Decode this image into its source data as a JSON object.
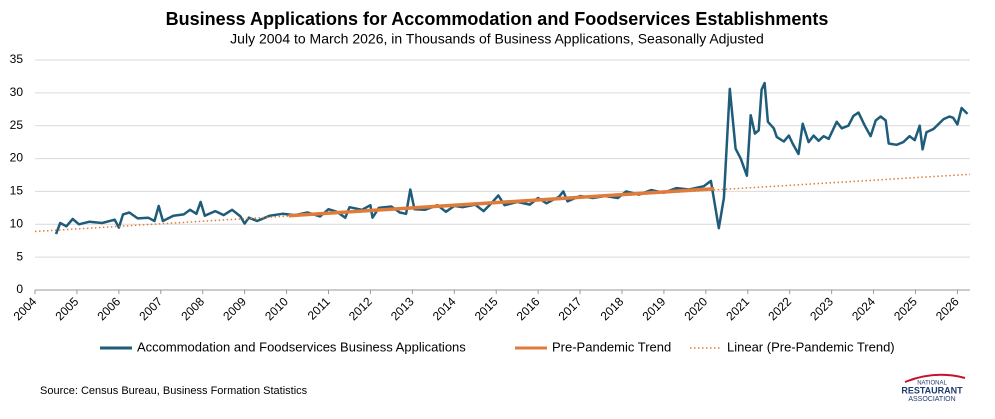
{
  "chart_data": {
    "type": "line",
    "title": "Business Applications for Accommodation and Foodservices Establishments",
    "subtitle": "July 2004 to March 2026, in Thousands of Business Applications, Seasonally Adjusted",
    "source": "Source: Census Bureau, Business Formation Statistics",
    "logo": [
      "NATIONAL",
      "RESTAURANT",
      "ASSOCIATION"
    ],
    "xlim": [
      2004,
      2026.3
    ],
    "xticks": [
      2004,
      2005,
      2006,
      2007,
      2008,
      2009,
      2010,
      2011,
      2012,
      2013,
      2014,
      2015,
      2016,
      2017,
      2018,
      2019,
      2020,
      2021,
      2022,
      2023,
      2024,
      2025,
      2026
    ],
    "ylim": [
      0,
      35
    ],
    "yticks": [
      0,
      5,
      10,
      15,
      20,
      25,
      30,
      35
    ],
    "grid": true,
    "legend": "bottom",
    "series": [
      {
        "name": "Accommodation and Foodservices Business Applications",
        "color": "#1f5c7a",
        "line_style": "solid",
        "x": [
          2004.5,
          2004.6,
          2004.75,
          2004.9,
          2005.05,
          2005.3,
          2005.6,
          2005.9,
          2006.0,
          2006.1,
          2006.25,
          2006.45,
          2006.7,
          2006.85,
          2006.95,
          2007.05,
          2007.3,
          2007.55,
          2007.7,
          2007.85,
          2007.95,
          2008.05,
          2008.3,
          2008.5,
          2008.7,
          2008.9,
          2009.0,
          2009.1,
          2009.3,
          2009.6,
          2009.9,
          2010.2,
          2010.5,
          2010.8,
          2011.0,
          2011.2,
          2011.4,
          2011.5,
          2011.8,
          2012.0,
          2012.05,
          2012.2,
          2012.5,
          2012.7,
          2012.85,
          2012.95,
          2013.05,
          2013.3,
          2013.6,
          2013.8,
          2014.0,
          2014.2,
          2014.5,
          2014.7,
          2014.9,
          2015.05,
          2015.2,
          2015.5,
          2015.8,
          2016.0,
          2016.2,
          2016.5,
          2016.6,
          2016.7,
          2017.0,
          2017.3,
          2017.6,
          2017.9,
          2018.1,
          2018.4,
          2018.7,
          2019.0,
          2019.3,
          2019.6,
          2019.95,
          2020.12,
          2020.31,
          2020.43,
          2020.57,
          2020.71,
          2020.83,
          2020.98,
          2021.07,
          2021.17,
          2021.26,
          2021.33,
          2021.4,
          2021.48,
          2021.62,
          2021.69,
          2021.86,
          2021.98,
          2022.07,
          2022.21,
          2022.31,
          2022.45,
          2022.57,
          2022.69,
          2022.81,
          2022.93,
          2023.12,
          2023.24,
          2023.4,
          2023.52,
          2023.64,
          2023.79,
          2023.93,
          2024.05,
          2024.17,
          2024.29,
          2024.36,
          2024.55,
          2024.71,
          2024.86,
          2024.98,
          2025.1,
          2025.17,
          2025.26,
          2025.43,
          2025.67,
          2025.81,
          2025.9,
          2026.0,
          2026.1,
          2026.24
        ],
        "values": [
          8.5,
          10.2,
          9.7,
          10.8,
          10.0,
          10.4,
          10.2,
          10.7,
          9.5,
          11.5,
          11.8,
          10.9,
          11.0,
          10.5,
          12.8,
          10.5,
          11.3,
          11.5,
          12.2,
          11.6,
          13.4,
          11.3,
          12.0,
          11.4,
          12.2,
          11.2,
          10.1,
          11.0,
          10.5,
          11.3,
          11.6,
          11.4,
          11.8,
          11.2,
          12.3,
          11.9,
          11.0,
          12.6,
          12.2,
          12.9,
          11.0,
          12.5,
          12.7,
          11.8,
          11.6,
          15.3,
          12.3,
          12.2,
          12.9,
          11.9,
          12.8,
          12.6,
          13.0,
          12.0,
          13.3,
          14.4,
          12.9,
          13.4,
          13.0,
          14.0,
          13.2,
          14.2,
          15.0,
          13.5,
          14.3,
          14.0,
          14.3,
          14.0,
          15.0,
          14.5,
          15.2,
          14.8,
          15.5,
          15.3,
          15.8,
          16.6,
          9.4,
          14.0,
          30.6,
          21.5,
          20.0,
          17.4,
          26.6,
          23.8,
          24.3,
          30.5,
          31.5,
          25.6,
          24.6,
          23.3,
          22.6,
          23.5,
          22.3,
          20.7,
          25.3,
          22.5,
          23.5,
          22.7,
          23.4,
          23.0,
          25.6,
          24.6,
          25.0,
          26.5,
          27.0,
          25.0,
          23.4,
          25.8,
          26.4,
          25.8,
          22.3,
          22.1,
          22.5,
          23.4,
          22.8,
          25.0,
          21.4,
          24.0,
          24.5,
          26.0,
          26.4,
          26.2,
          25.2,
          27.7,
          26.8
        ]
      },
      {
        "name": "Pre-Pandemic Trend",
        "color": "#e07b39",
        "line_style": "solid",
        "x": [
          2010.05,
          2020.2
        ],
        "values": [
          11.3,
          15.4
        ]
      },
      {
        "name": "Linear (Pre-Pandemic Trend)",
        "color": "#e07b39",
        "line_style": "dotted",
        "x": [
          2004,
          2026.3
        ],
        "values": [
          8.9,
          17.6
        ]
      }
    ]
  }
}
